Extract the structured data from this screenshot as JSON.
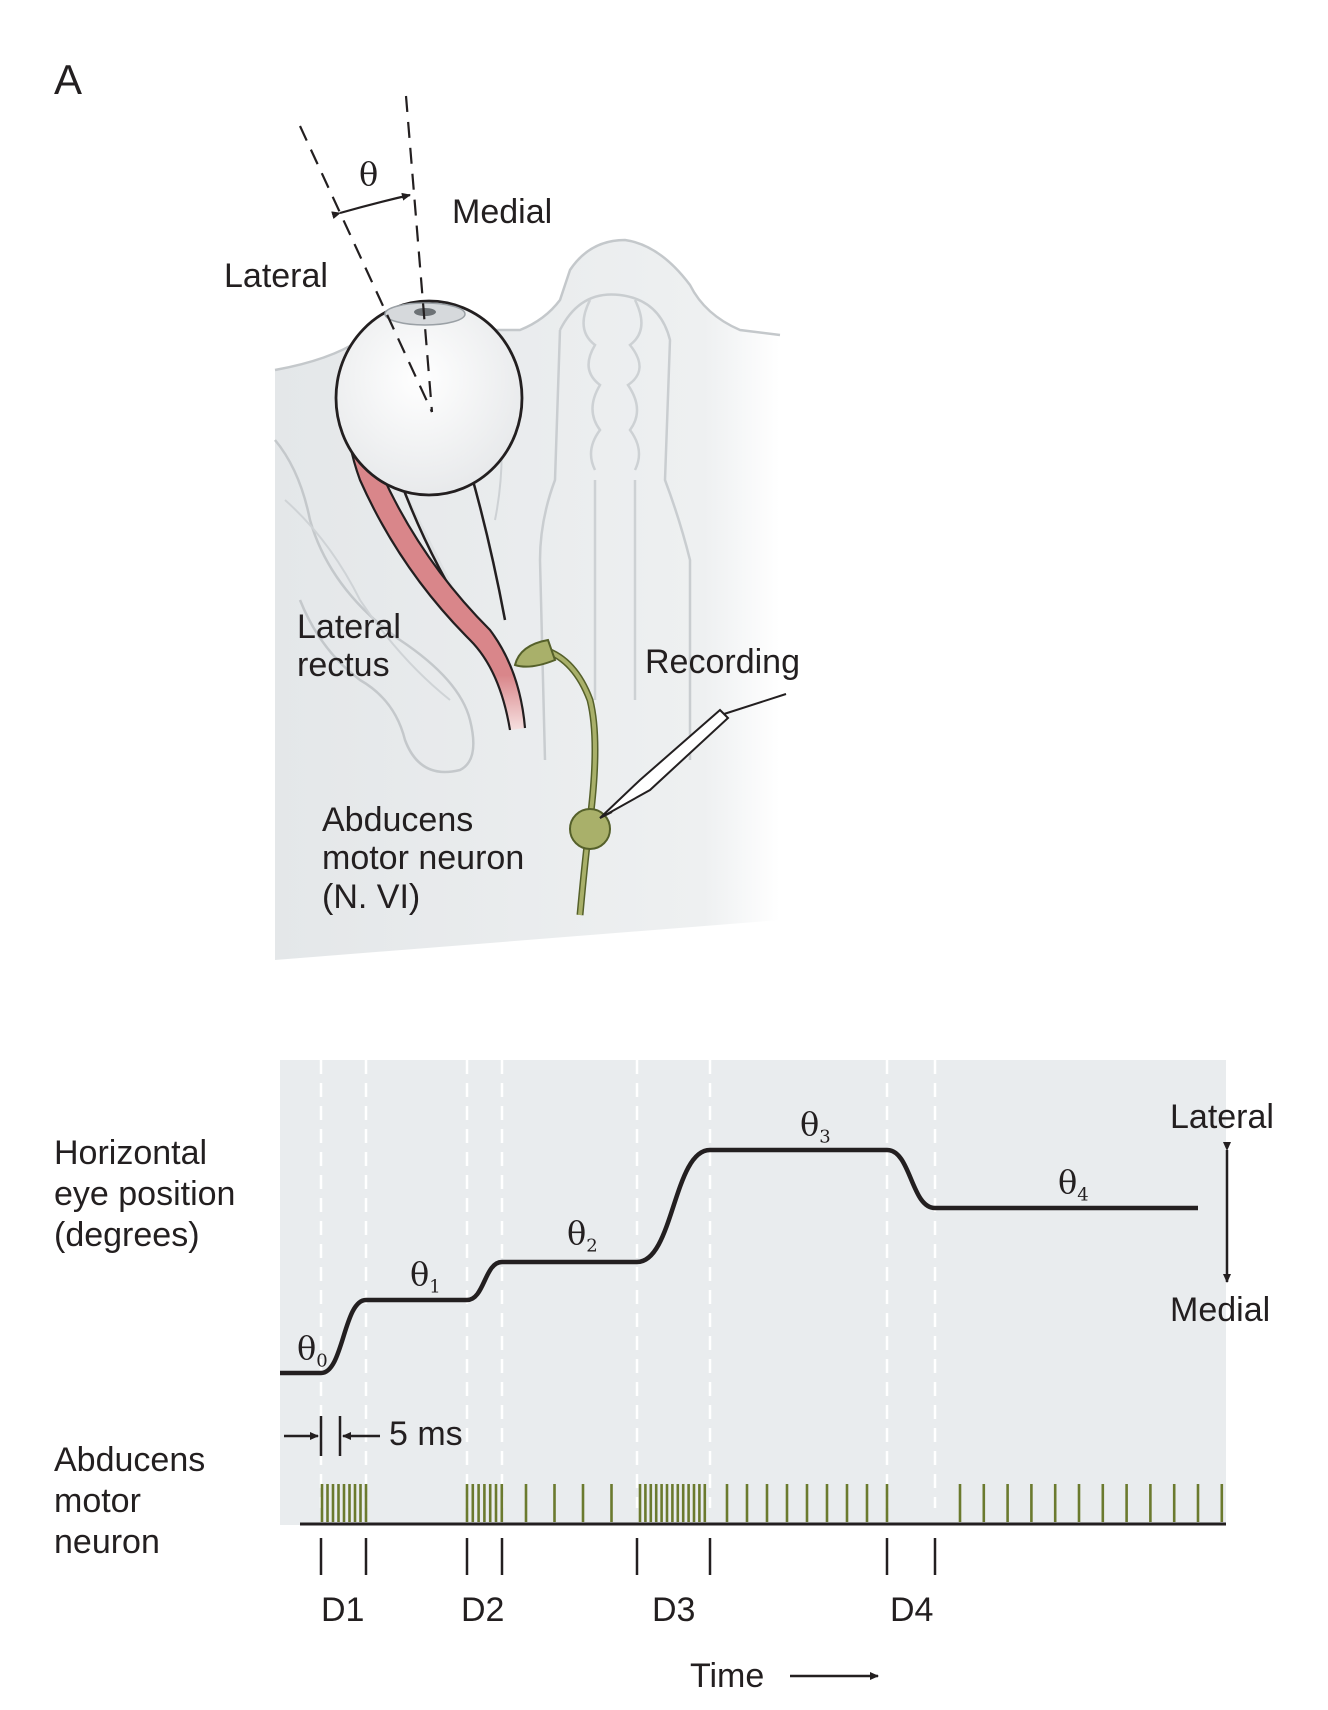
{
  "panel_label": "A",
  "anatomy": {
    "angle_symbol": "θ",
    "medial_label": "Medial",
    "lateral_label": "Lateral",
    "muscle_label_1": "Lateral",
    "muscle_label_2": "rectus",
    "recording_label": "Recording",
    "neuron_label_1": "Abducens",
    "neuron_label_2": "motor neuron",
    "neuron_label_3": "(N. VI)"
  },
  "trace": {
    "ylabel_1": "Horizontal",
    "ylabel_2": "eye position",
    "ylabel_3": "(degrees)",
    "direction_top": "Lateral",
    "direction_bottom": "Medial",
    "positions": [
      {
        "symbol": "θ",
        "sub": "0"
      },
      {
        "symbol": "θ",
        "sub": "1"
      },
      {
        "symbol": "θ",
        "sub": "2"
      },
      {
        "symbol": "θ",
        "sub": "3"
      },
      {
        "symbol": "θ",
        "sub": "4"
      }
    ],
    "latency_label": "5 ms",
    "spike_row_label_1": "Abducens",
    "spike_row_label_2": "motor",
    "spike_row_label_3": "neuron",
    "durations": [
      "D1",
      "D2",
      "D3",
      "D4"
    ],
    "time_label": "Time"
  },
  "colors": {
    "panel_bg": "#e9ecee",
    "trace": "#231f20",
    "spike": "#6b7a2e",
    "muscle": "#d9868a",
    "neuron": "#a9b06a",
    "neuron_stroke": "#55602a"
  }
}
